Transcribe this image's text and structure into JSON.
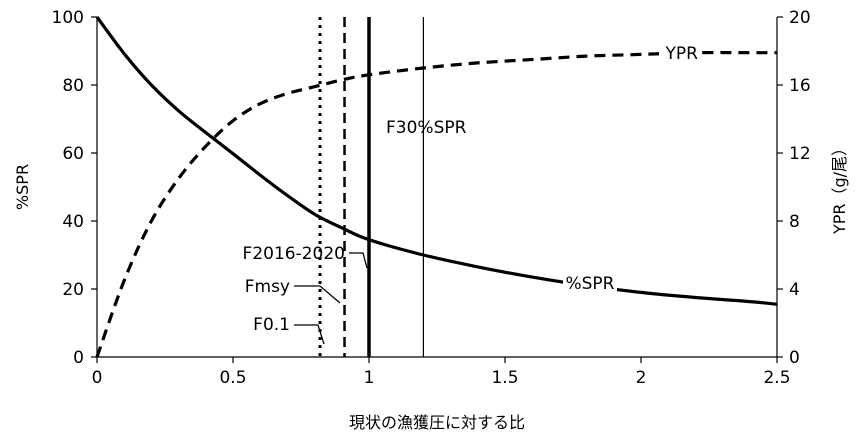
{
  "chart_data": {
    "type": "line",
    "x_axis": {
      "label": "現状の漁獲圧に対する比",
      "range": [
        0,
        2.5
      ],
      "ticks": [
        "0",
        "0.5",
        "1",
        "1.5",
        "2",
        "2.5"
      ]
    },
    "y_axis_left": {
      "label": "%SPR",
      "range": [
        0,
        100
      ],
      "ticks": [
        "0",
        "20",
        "40",
        "60",
        "80",
        "100"
      ]
    },
    "y_axis_right": {
      "label": "YPR（g/尾）",
      "range": [
        0,
        20
      ],
      "ticks": [
        "0",
        "4",
        "8",
        "12",
        "16",
        "20"
      ]
    },
    "grid": false,
    "series": [
      {
        "name": "%SPR",
        "axis": "left",
        "style": "solid",
        "x": [
          0,
          0.1,
          0.2,
          0.3,
          0.4,
          0.5,
          0.6,
          0.7,
          0.8,
          0.9,
          1.0,
          1.2,
          1.4,
          1.6,
          1.8,
          2.0,
          2.2,
          2.4,
          2.5
        ],
        "y": [
          100,
          89.2,
          80.0,
          72.4,
          66.0,
          59.8,
          53.5,
          47.5,
          42.0,
          38.0,
          34.5,
          30.0,
          26.5,
          23.5,
          21.0,
          19.0,
          17.5,
          16.3,
          15.5
        ]
      },
      {
        "name": "YPR",
        "axis": "right",
        "style": "dashed",
        "x": [
          0,
          0.1,
          0.2,
          0.3,
          0.4,
          0.5,
          0.6,
          0.7,
          0.8,
          0.9,
          1.0,
          1.2,
          1.4,
          1.6,
          1.8,
          2.0,
          2.2,
          2.4,
          2.5
        ],
        "y": [
          0,
          4.5,
          8.0,
          10.5,
          12.4,
          13.9,
          14.9,
          15.5,
          15.9,
          16.3,
          16.6,
          17.0,
          17.3,
          17.5,
          17.7,
          17.8,
          17.9,
          17.9,
          17.9
        ]
      }
    ],
    "reference_lines": [
      {
        "label": "F0.1",
        "x": 0.82,
        "style": "dotted"
      },
      {
        "label": "Fmsy",
        "x": 0.91,
        "style": "dashed"
      },
      {
        "label": "F2016-2020",
        "x": 1.0,
        "style": "solid-thick"
      },
      {
        "label": "F30%SPR",
        "x": 1.2,
        "style": "solid-thin"
      }
    ]
  }
}
